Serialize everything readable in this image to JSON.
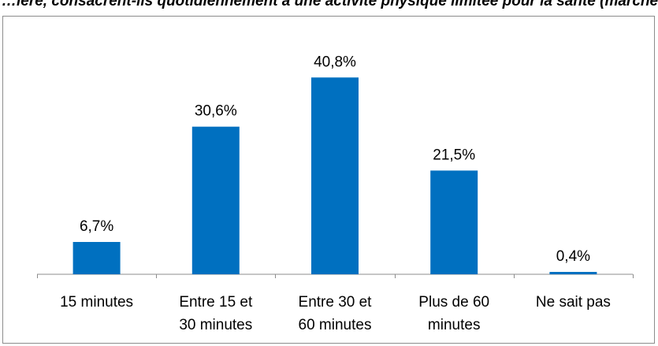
{
  "chart_data": {
    "type": "bar",
    "title": "…ière, consacrent-ils quotidiennement à une activité physique limitée pour la santé (marche, vélo, …)",
    "categories": [
      [
        "15 minutes"
      ],
      [
        "Entre 15 et",
        "30 minutes"
      ],
      [
        "Entre 30 et",
        "60 minutes"
      ],
      [
        "Plus de 60",
        "minutes"
      ],
      [
        "Ne sait pas"
      ]
    ],
    "values": [
      6.7,
      30.6,
      40.8,
      21.5,
      0.4
    ],
    "data_labels": [
      "6,7%",
      "30,6%",
      "40,8%",
      "21,5%",
      "0,4%"
    ],
    "ylim": [
      0,
      50
    ],
    "grid": false,
    "legend": "none",
    "bar_color": "#0070C0",
    "axis_color": "#8c8c8c"
  }
}
